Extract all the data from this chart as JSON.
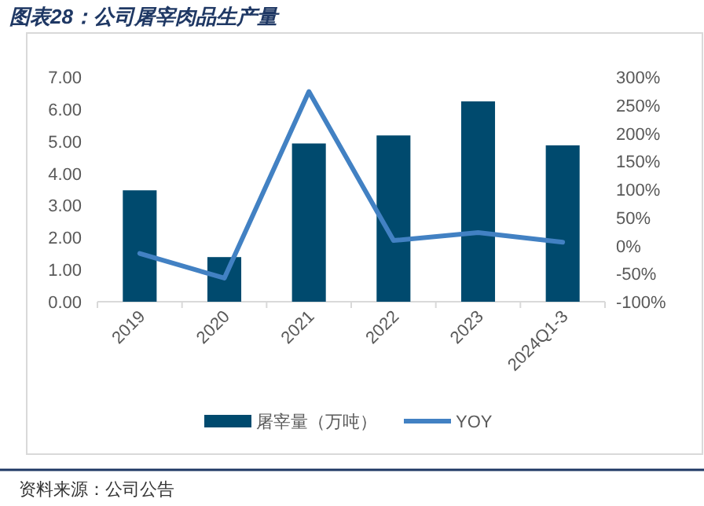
{
  "chart_data": {
    "type": "bar",
    "title": "图表28：公司屠宰肉品生产量",
    "categories": [
      "2019",
      "2020",
      "2021",
      "2022",
      "2023",
      "2024Q1-3"
    ],
    "series": [
      {
        "name": "屠宰量（万吨）",
        "color": "#004a6e",
        "values": [
          3.47,
          1.39,
          4.93,
          5.18,
          6.24,
          4.87
        ]
      },
      {
        "name": "YOY",
        "type": "line",
        "axis": "y2",
        "color": "#4281c3",
        "values": [
          -14,
          -58,
          274,
          9,
          23,
          6
        ]
      }
    ],
    "ylim": [
      0,
      7
    ],
    "yticks": [
      {
        "value": 0,
        "label": "0.00"
      },
      {
        "value": 1,
        "label": "1.00"
      },
      {
        "value": 2,
        "label": "2.00"
      },
      {
        "value": 3,
        "label": "3.00"
      },
      {
        "value": 4,
        "label": "4.00"
      },
      {
        "value": 5,
        "label": "5.00"
      },
      {
        "value": 6,
        "label": "6.00"
      },
      {
        "value": 7,
        "label": "7.00"
      }
    ],
    "y2lim": [
      -100,
      300
    ],
    "y2ticks": [
      {
        "value": -100,
        "label": "-100%"
      },
      {
        "value": -50,
        "label": "-50%"
      },
      {
        "value": 0,
        "label": "0%"
      },
      {
        "value": 50,
        "label": "50%"
      },
      {
        "value": 100,
        "label": "100%"
      },
      {
        "value": 150,
        "label": "150%"
      },
      {
        "value": 200,
        "label": "200%"
      },
      {
        "value": 250,
        "label": "250%"
      },
      {
        "value": 300,
        "label": "300%"
      }
    ],
    "legend": "bottom",
    "annotations": [
      "资料来源：公司公告"
    ]
  }
}
